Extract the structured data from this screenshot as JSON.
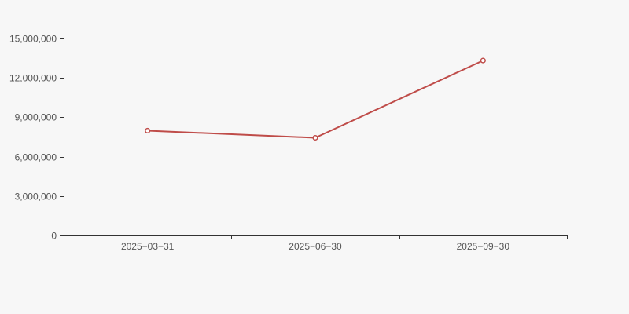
{
  "chart": {
    "background_color": "#f7f7f7",
    "axis_color": "#333333",
    "label_color": "#555555",
    "series_color": "#bf4c49",
    "marker_fill": "#ffffff"
  },
  "chart_data": {
    "type": "line",
    "title": "",
    "xlabel": "",
    "ylabel": "",
    "categories": [
      "2025−03−31",
      "2025−06−30",
      "2025−09−30"
    ],
    "series": [
      {
        "name": "value",
        "values": [
          7980000,
          7440000,
          13320000
        ]
      }
    ],
    "ylim": [
      0,
      15000000
    ],
    "y_ticks": [
      0,
      3000000,
      6000000,
      9000000,
      12000000,
      15000000
    ],
    "y_tick_labels": [
      "0",
      "3,000,000",
      "6,000,000",
      "9,000,000",
      "12,000,000",
      "15,000,000"
    ],
    "grid": false,
    "legend": null,
    "marker": "hollow-circle",
    "x_tick_position": "category-boundaries"
  }
}
